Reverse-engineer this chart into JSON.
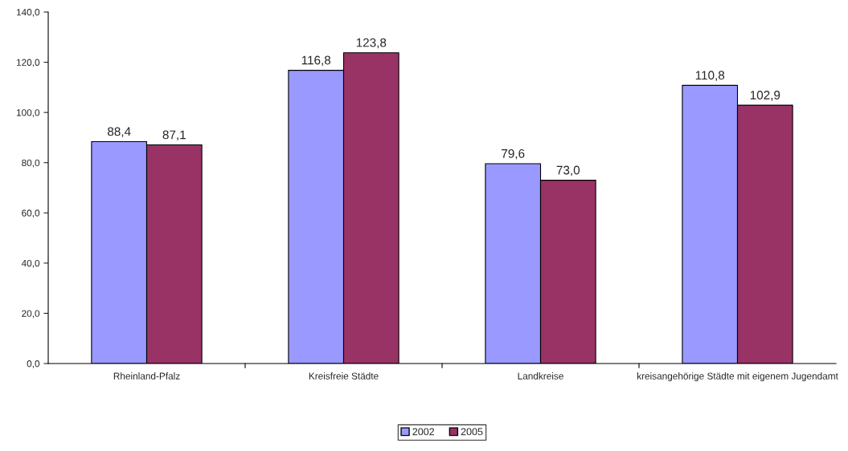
{
  "chart_data": {
    "type": "bar",
    "categories": [
      "Rheinland-Pfalz",
      "Kreisfreie Städte",
      "Landkreise",
      "kreisangehörige Städte mit eigenem Jugendamt"
    ],
    "series": [
      {
        "name": "2002",
        "color": "#9999ff",
        "values": [
          88.4,
          116.8,
          79.6,
          110.8
        ],
        "value_labels": [
          "88,4",
          "116,8",
          "79,6",
          "110,8"
        ]
      },
      {
        "name": "2005",
        "color": "#993366",
        "values": [
          87.1,
          123.8,
          73.0,
          102.9
        ],
        "value_labels": [
          "87,1",
          "123,8",
          "73,0",
          "102,9"
        ]
      }
    ],
    "ylim": [
      0,
      140
    ],
    "yticks": [
      {
        "value": 0,
        "label": "0,0"
      },
      {
        "value": 20,
        "label": "20,0"
      },
      {
        "value": 40,
        "label": "40,0"
      },
      {
        "value": 60,
        "label": "60,0"
      },
      {
        "value": 80,
        "label": "80,0"
      },
      {
        "value": 100,
        "label": "100,0"
      },
      {
        "value": 120,
        "label": "120,0"
      },
      {
        "value": 140,
        "label": "140,0"
      }
    ],
    "legend": "bottom",
    "grid": false
  }
}
